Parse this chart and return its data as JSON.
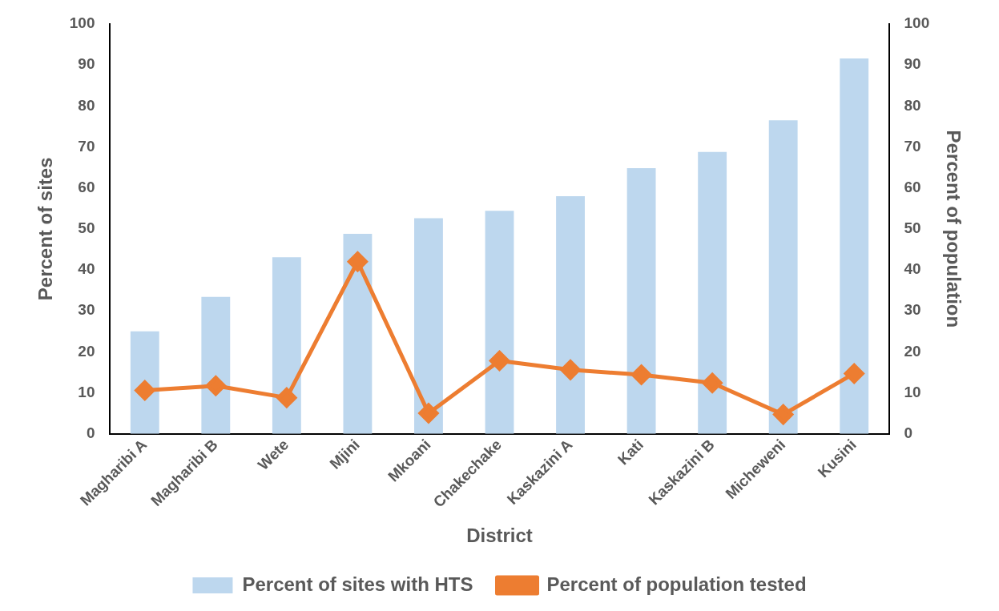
{
  "chart_data": {
    "type": "bar",
    "xlabel": "District",
    "ylabel": "Percent of sites",
    "y2label": "Percent of population",
    "categories": [
      "Magharibi A",
      "Magharibi B",
      "Wete",
      "Mjini",
      "Mkoani",
      "Chakechake",
      "Kaskazini A",
      "Kati",
      "Kaskazini B",
      "Micheweni",
      "Kusini"
    ],
    "series": [
      {
        "name": "Percent of sites with HTS",
        "color": "#bdd7ee",
        "values": [
          25,
          33.4,
          43.1,
          48.8,
          52.6,
          54.4,
          58.0,
          64.8,
          68.8,
          76.5,
          91.6
        ]
      },
      {
        "name": "Percent of population tested",
        "type": "line",
        "axis": "y2",
        "color": "#ed7d31",
        "values": [
          10.6,
          11.7,
          8.8,
          42,
          5.0,
          17.8,
          15.6,
          14.4,
          12.4,
          4.7,
          14.7
        ]
      }
    ],
    "ylim": [
      0,
      100
    ],
    "yticks": [
      0,
      10,
      20,
      30,
      40,
      50,
      60,
      70,
      80,
      90,
      100
    ],
    "y2lim": [
      0,
      100
    ],
    "y2ticks": [
      0,
      10,
      20,
      30,
      40,
      50,
      60,
      70,
      80,
      90,
      100
    ],
    "grid": false,
    "legend": "bottom",
    "marker": "diamond",
    "line_style": "solid"
  }
}
